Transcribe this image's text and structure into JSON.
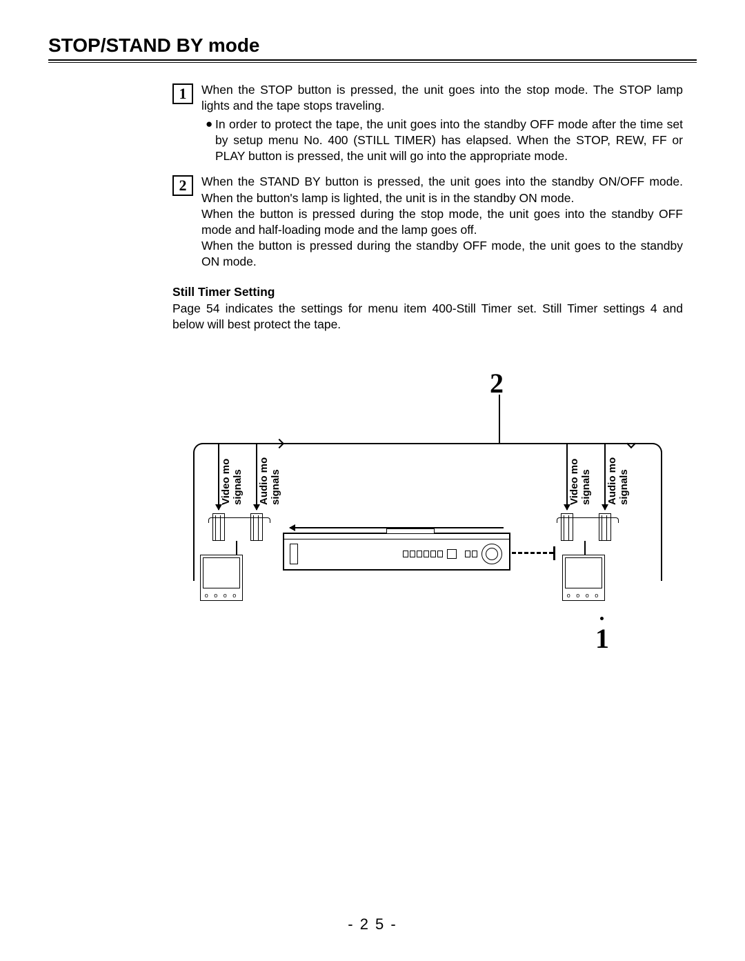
{
  "title": "STOP/STAND BY mode",
  "steps": [
    {
      "num": "1",
      "text": "When the STOP button is pressed, the unit goes into the stop mode. The STOP lamp lights and the tape stops traveling.",
      "bullets": [
        "In order to protect the tape, the unit goes into the standby OFF mode after the time set by setup menu No. 400 (STILL TIMER) has elapsed. When the STOP, REW, FF or PLAY button is pressed, the unit will go into the appropriate mode."
      ]
    },
    {
      "num": "2",
      "text": "When the STAND BY button is pressed, the unit goes into the standby ON/OFF mode. When the button's lamp is lighted, the unit is in the standby ON mode.\nWhen the button is pressed during the stop mode, the unit goes into the standby OFF mode and half-loading mode and the lamp goes off.\nWhen the button is pressed during the standby OFF mode, the unit goes to the standby ON  mode."
    }
  ],
  "subhead": "Still Timer Setting",
  "subtext": "Page 54 indicates the settings for menu item 400-Still Timer set. Still Timer settings 4 and below will best protect the tape.",
  "diagram": {
    "callout2": "2",
    "callout1": "1",
    "labels": {
      "video": "Video mo",
      "signals": "signals",
      "audio": "Audio mo"
    },
    "monitor_dots": "o  o o  o"
  },
  "pagenum": "- 2 5 -"
}
